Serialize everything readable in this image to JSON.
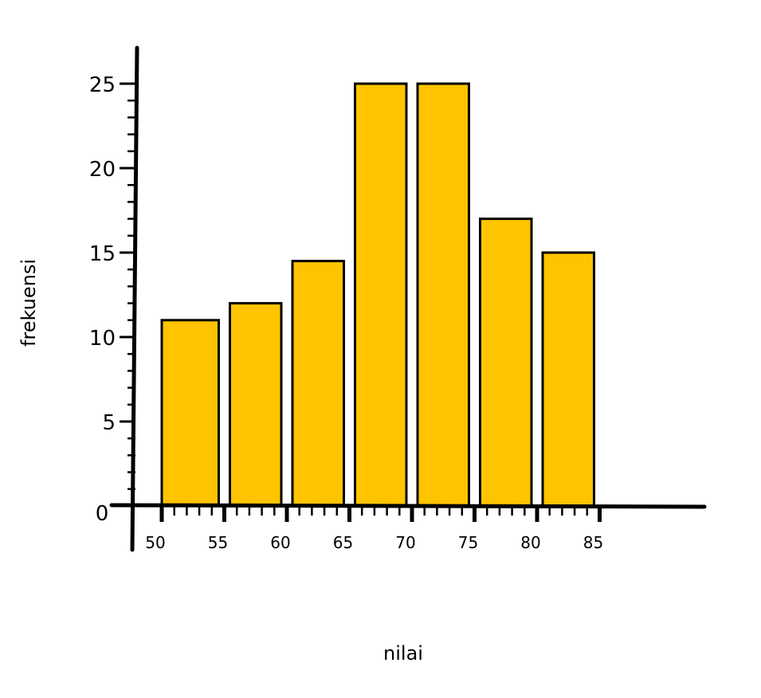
{
  "chart_data": {
    "type": "bar",
    "title": "",
    "xlabel": "nilai",
    "ylabel": "frekuensi",
    "x_ticks": [
      "50",
      "55",
      "60",
      "65",
      "70",
      "75",
      "80",
      "85"
    ],
    "y_ticks": [
      "0",
      "5",
      "10",
      "15",
      "20",
      "25"
    ],
    "categories": [
      "50-55",
      "55-60",
      "60-65",
      "65-70",
      "70-75",
      "75-80",
      "80-85"
    ],
    "values": [
      11,
      12,
      14.5,
      25,
      25,
      17,
      15
    ],
    "ylim": [
      0,
      25
    ],
    "xlim": [
      50,
      85
    ],
    "grid": false,
    "colors": {
      "bar": "#FFC400",
      "outline": "#000000"
    }
  }
}
